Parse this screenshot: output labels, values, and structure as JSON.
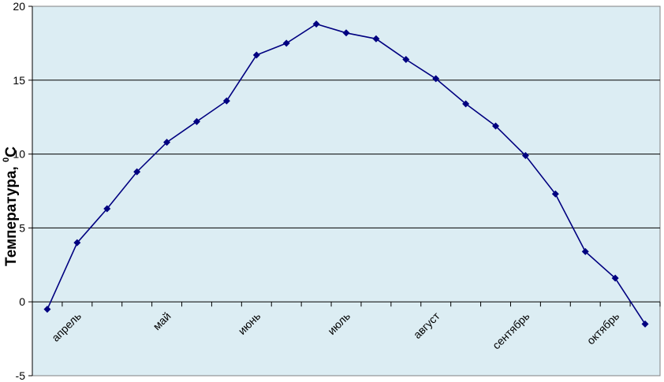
{
  "chart_data": {
    "type": "line",
    "title": "",
    "ylabel": "Температура, 0С",
    "ylabel_parts": {
      "main": "Температура, ",
      "sup": "0",
      "unit": "С"
    },
    "ylim": [
      -5,
      20
    ],
    "yticks": [
      -5,
      0,
      5,
      10,
      15,
      20
    ],
    "ytick_labels": [
      "-5",
      "0",
      "5",
      "10",
      "15",
      "20"
    ],
    "grid": "horizontal",
    "colors": {
      "plot_background": "#dcedf3",
      "line": "#000080",
      "gridline": "#000000"
    },
    "categories": [
      "апрель",
      "май",
      "июнь",
      "июль",
      "август",
      "сентябрь",
      "октябрь"
    ],
    "x": [
      1,
      2,
      3,
      4,
      5,
      6,
      7,
      8,
      9,
      10,
      11,
      12,
      13,
      14,
      15,
      16,
      17,
      18,
      19,
      20,
      21
    ],
    "series": [
      {
        "values": [
          -0.5,
          4.0,
          6.3,
          8.8,
          10.8,
          12.2,
          13.6,
          16.7,
          17.5,
          18.8,
          18.2,
          17.8,
          16.4,
          15.1,
          13.4,
          11.9,
          9.9,
          7.3,
          3.4,
          1.6,
          -1.5
        ]
      }
    ]
  }
}
